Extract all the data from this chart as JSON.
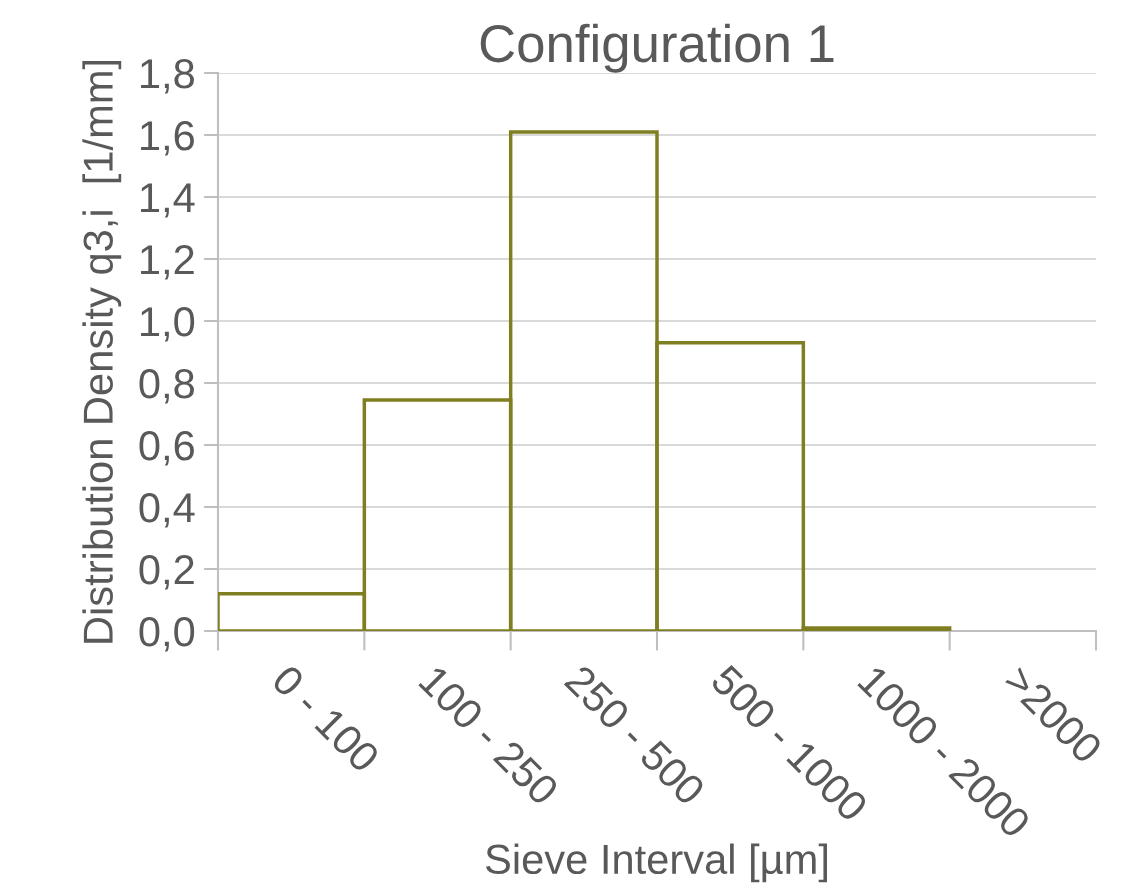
{
  "chart_data": {
    "type": "bar",
    "title": "Configuration 1",
    "xlabel": "Sieve Interval [µm]",
    "ylabel": "Distribution Density q3,i  [1/mm]",
    "categories": [
      "0 - 100",
      "100 - 250",
      "250 - 500",
      "500 - 1000",
      "1000 - 2000",
      ">2000"
    ],
    "values": [
      0.12,
      0.745,
      1.61,
      0.93,
      0.01,
      null
    ],
    "color": "#7f7f22",
    "ylim": [
      0,
      1.8
    ],
    "yticks": [
      {
        "value": 0,
        "label": "0,0"
      },
      {
        "value": 0.2,
        "label": "0,2"
      },
      {
        "value": 0.4,
        "label": "0,4"
      },
      {
        "value": 0.6,
        "label": "0,6"
      },
      {
        "value": 0.8,
        "label": "0,8"
      },
      {
        "value": 1.0,
        "label": "1,0"
      },
      {
        "value": 1.2,
        "label": "1,2"
      },
      {
        "value": 1.4,
        "label": "1,4"
      },
      {
        "value": 1.6,
        "label": "1,6"
      },
      {
        "value": 1.8,
        "label": "1,8"
      }
    ],
    "grid": "y"
  }
}
